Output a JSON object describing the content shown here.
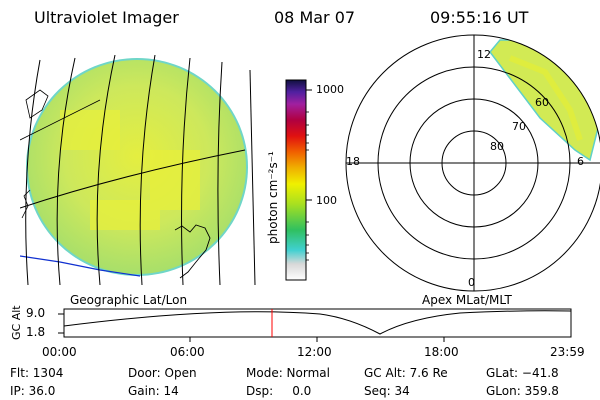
{
  "header": {
    "title": "Ultraviolet Imager",
    "date": "08 Mar 07",
    "time": "09:55:16 UT"
  },
  "left_panel": {
    "caption": "Geographic Lat/Lon"
  },
  "colorbar": {
    "unit_label": "photon cm⁻²s⁻¹",
    "ticks": [
      "1000",
      "100"
    ],
    "scale": "log"
  },
  "right_panel": {
    "caption": "Apex MLat/MLT",
    "mlt_labels": [
      "12",
      "18",
      "6",
      "0"
    ],
    "mlat_labels": [
      "60",
      "70",
      "80"
    ]
  },
  "gc_alt_plot": {
    "axis_label": "GC Alt",
    "yticks": [
      "9.0",
      "1.8"
    ],
    "xticks": [
      "00:00",
      "06:00",
      "12:00",
      "18:00",
      "23:59"
    ],
    "marker_time": "09:55",
    "marker_color": "#ff0000"
  },
  "footer": {
    "row1": [
      "Flt: 1304",
      "Door: Open",
      "Mode: Normal",
      "GC Alt: 7.6 Re",
      "GLat: −41.8"
    ],
    "row2": [
      "IP: 36.0",
      "Gain: 14",
      "Dsp:     0.0",
      "Seq: 34",
      "GLon: 359.8"
    ]
  },
  "colors": {
    "image_fill": "#c8e85a",
    "image_edge": "#5fd0c8",
    "coastline": "#1030d0"
  }
}
